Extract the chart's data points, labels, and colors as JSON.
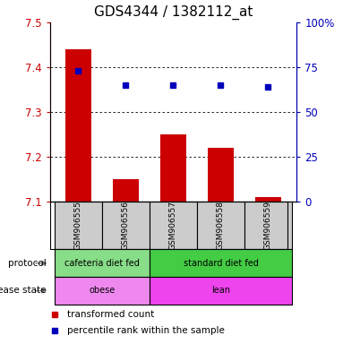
{
  "title": "GDS4344 / 1382112_at",
  "samples": [
    "GSM906555",
    "GSM906556",
    "GSM906557",
    "GSM906558",
    "GSM906559"
  ],
  "bar_values": [
    7.44,
    7.15,
    7.25,
    7.22,
    7.11
  ],
  "bar_baseline": 7.1,
  "blue_values": [
    73,
    65,
    65,
    65,
    64
  ],
  "blue_pct_min": 0,
  "blue_pct_max": 100,
  "ylim": [
    7.1,
    7.5
  ],
  "yticks": [
    7.1,
    7.2,
    7.3,
    7.4,
    7.5
  ],
  "right_yticks": [
    0,
    25,
    50,
    75,
    100
  ],
  "right_yticklabels": [
    "0",
    "25",
    "50",
    "75",
    "100%"
  ],
  "bar_color": "#cc0000",
  "blue_color": "#0000bb",
  "protocol_groups": [
    {
      "label": "cafeteria diet fed",
      "start": 0,
      "end": 2,
      "color": "#88dd88"
    },
    {
      "label": "standard diet fed",
      "start": 2,
      "end": 5,
      "color": "#44cc44"
    }
  ],
  "disease_groups": [
    {
      "label": "obese",
      "start": 0,
      "end": 2,
      "color": "#ee88ee"
    },
    {
      "label": "lean",
      "start": 2,
      "end": 5,
      "color": "#ee44ee"
    }
  ],
  "protocol_label": "protocol",
  "disease_label": "disease state",
  "legend_red": "transformed count",
  "legend_blue": "percentile rank within the sample",
  "bar_width": 0.55,
  "sample_box_color": "#cccccc",
  "title_fontsize": 11,
  "tick_fontsize": 8.5,
  "label_fontsize": 8
}
